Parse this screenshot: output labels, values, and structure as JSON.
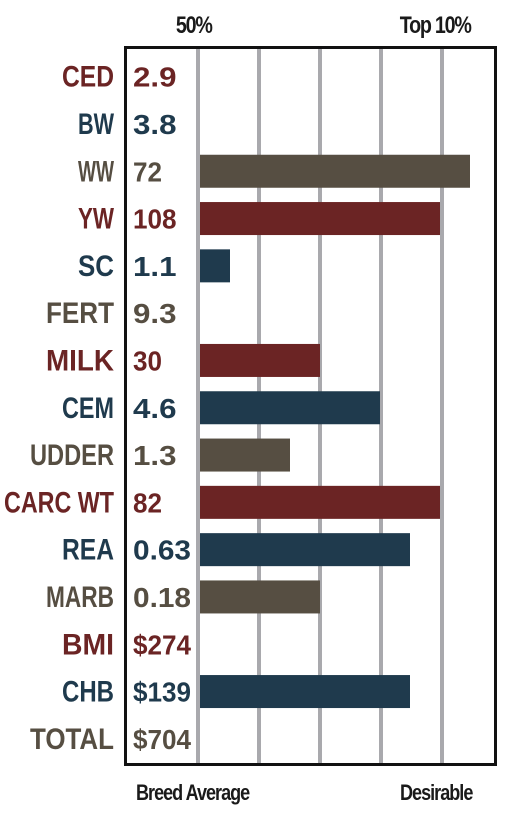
{
  "chart_data": {
    "type": "bar",
    "orientation": "horizontal",
    "top_labels": {
      "left": "50%",
      "right": "Top 10%"
    },
    "bottom_labels": {
      "left": "Breed Average",
      "right": "Desirable"
    },
    "grid": true,
    "xlim": [
      0,
      100
    ],
    "rows": [
      {
        "trait": "CED",
        "value": "2.9",
        "bar": 0,
        "color": "#6b2424"
      },
      {
        "trait": "BW",
        "value": "3.8",
        "bar": 0,
        "color": "#1f3a4d"
      },
      {
        "trait": "WW",
        "value": "72",
        "bar": 90,
        "color": "#564e42"
      },
      {
        "trait": "YW",
        "value": "108",
        "bar": 80,
        "color": "#6b2424"
      },
      {
        "trait": "SC",
        "value": "1.1",
        "bar": 10,
        "color": "#1f3a4d"
      },
      {
        "trait": "FERT",
        "value": "9.3",
        "bar": 0,
        "color": "#564e42"
      },
      {
        "trait": "MILK",
        "value": "30",
        "bar": 40,
        "color": "#6b2424"
      },
      {
        "trait": "CEM",
        "value": "4.6",
        "bar": 60,
        "color": "#1f3a4d"
      },
      {
        "trait": "UDDER",
        "value": "1.3",
        "bar": 30,
        "color": "#564e42"
      },
      {
        "trait": "CARC WT",
        "value": "82",
        "bar": 80,
        "color": "#6b2424"
      },
      {
        "trait": "REA",
        "value": "0.63",
        "bar": 70,
        "color": "#1f3a4d"
      },
      {
        "trait": "MARB",
        "value": "0.18",
        "bar": 40,
        "color": "#564e42"
      },
      {
        "trait": "BMI",
        "value": "$274",
        "bar": 0,
        "color": "#6b2424"
      },
      {
        "trait": "CHB",
        "value": "$139",
        "bar": 70,
        "color": "#1f3a4d"
      },
      {
        "trait": "TOTAL",
        "value": "$704",
        "bar": 0,
        "color": "#564e42"
      }
    ]
  }
}
